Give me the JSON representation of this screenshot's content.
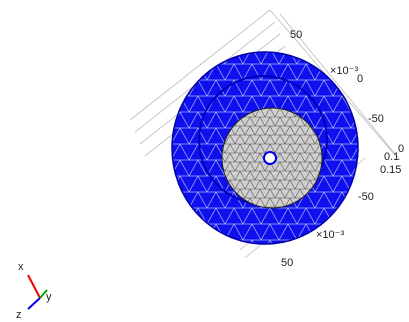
{
  "axis_labels": [
    "50",
    "×10⁻³",
    "0",
    "-50",
    "0.1",
    "0.15",
    "0",
    "-50",
    "×10⁻³",
    "50"
  ],
  "triad": {
    "x": "x",
    "y": "y",
    "z": "z"
  }
}
